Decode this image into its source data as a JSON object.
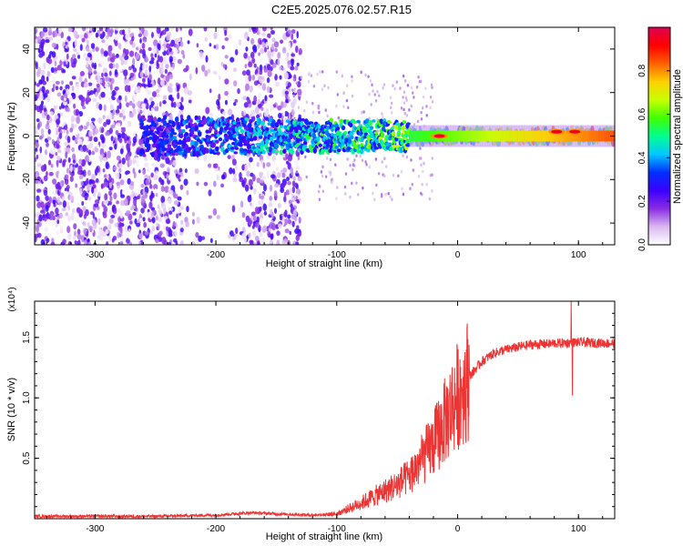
{
  "title": "C2E5.2025.076.02.57.R15",
  "chart_data": [
    {
      "type": "heatmap",
      "xlabel": "Height of straight line (km)",
      "ylabel": "Frequency (Hz)",
      "xlim": [
        -350,
        130
      ],
      "ylim": [
        -50,
        50
      ],
      "x_ticks": [
        -300,
        -200,
        -100,
        0,
        100
      ],
      "x_tick_labels": [
        "-300",
        "-200",
        "-100",
        "0",
        "100"
      ],
      "y_ticks": [
        -40,
        -20,
        0,
        20,
        40
      ],
      "y_tick_labels": [
        "-40",
        "-20",
        "0",
        "20",
        "40"
      ],
      "colorbar": {
        "label": "Normalized spectral amplitude",
        "range": [
          0,
          1
        ],
        "ticks": [
          0,
          0.2,
          0.4,
          0.6,
          0.8
        ],
        "tick_labels": [
          "0.0",
          "0.2",
          "0.4",
          "0.6",
          "0.8"
        ],
        "colors": [
          "#ffffff",
          "#d8b8f0",
          "#8a2be2",
          "#3a00ff",
          "#0030ff",
          "#00c8ff",
          "#00ff90",
          "#40ff00",
          "#c8ff00",
          "#ffd000",
          "#ff6000",
          "#ff0000",
          "#e00050"
        ]
      },
      "features": [
        {
          "name": "noise region",
          "x_range": [
            -350,
            -130
          ],
          "y_range": [
            -50,
            50
          ],
          "amplitude": 0.12
        },
        {
          "name": "carrier",
          "x_range": [
            -262,
            130
          ],
          "center_frequency": 0,
          "amplitude_start": 0.3,
          "amplitude_end": 0.85
        },
        {
          "name": "peak",
          "x": -15,
          "frequency": 0,
          "amplitude": 0.95
        },
        {
          "name": "peak",
          "x": 82,
          "frequency": 2,
          "amplitude": 0.95
        },
        {
          "name": "peak",
          "x": 97,
          "frequency": 2,
          "amplitude": 0.95
        }
      ]
    },
    {
      "type": "line",
      "xlabel": "Height of straight line (km)",
      "ylabel": "SNR (10 * v/v)",
      "scale_label": "(x10⁴)",
      "xlim": [
        -350,
        130
      ],
      "ylim": [
        0,
        1.8
      ],
      "x_ticks": [
        -300,
        -200,
        -100,
        0,
        100
      ],
      "x_tick_labels": [
        "-300",
        "-200",
        "-100",
        "0",
        "100"
      ],
      "y_ticks": [
        0.5,
        1.0,
        1.5
      ],
      "y_tick_labels": [
        "0.5",
        "1.0",
        "1.5"
      ],
      "series": [
        {
          "color": "#ee3333",
          "x": [
            -350,
            -300,
            -250,
            -200,
            -170,
            -150,
            -120,
            -100,
            -80,
            -60,
            -50,
            -40,
            -30,
            -20,
            -10,
            0,
            10,
            20,
            30,
            40,
            60,
            80,
            100,
            130
          ],
          "values": [
            0.02,
            0.02,
            0.02,
            0.03,
            0.05,
            0.04,
            0.03,
            0.04,
            0.13,
            0.23,
            0.28,
            0.35,
            0.48,
            0.62,
            0.82,
            1.02,
            1.18,
            1.3,
            1.37,
            1.4,
            1.44,
            1.45,
            1.46,
            1.45
          ]
        }
      ],
      "annotations": [
        {
          "x": 94,
          "value": 1.8,
          "note": "spike max"
        },
        {
          "x": 95,
          "value": 1.02,
          "note": "spike min"
        }
      ]
    }
  ]
}
